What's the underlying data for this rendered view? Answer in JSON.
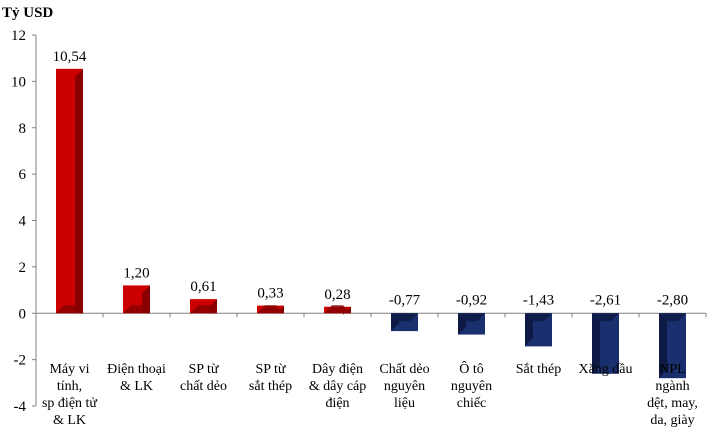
{
  "chart_data": {
    "type": "bar",
    "title": "",
    "ylabel": "Tỷ USD",
    "xlabel": "",
    "ylim": [
      -4,
      12
    ],
    "yticks": [
      -4,
      -2,
      0,
      2,
      4,
      6,
      8,
      10,
      12
    ],
    "ytick_labels": [
      "-4",
      "-2",
      "0",
      "2",
      "4",
      "6",
      "8",
      "10",
      "12"
    ],
    "grid": false,
    "categories": [
      [
        "Máy vi",
        "tính,",
        "sp điện tử",
        "& LK"
      ],
      [
        "Điện thoại",
        "& LK"
      ],
      [
        "SP từ",
        "chất dẻo"
      ],
      [
        "SP từ",
        "sắt thép"
      ],
      [
        "Dây điện",
        "& dây cáp",
        "điện"
      ],
      [
        "Chất dẻo",
        "nguyên",
        "liệu"
      ],
      [
        "Ô tô",
        "nguyên",
        "chiếc"
      ],
      [
        "Sắt thép"
      ],
      [
        "Xăng dầu"
      ],
      [
        "NPL",
        "ngành",
        "dệt, may,",
        "da, giày"
      ]
    ],
    "values": [
      10.54,
      1.2,
      0.61,
      0.33,
      0.28,
      -0.77,
      -0.92,
      -1.43,
      -2.61,
      -2.8
    ],
    "data_labels": [
      "10,54",
      "1,20",
      "0,61",
      "0,33",
      "0,28",
      "-0,77",
      "-0,92",
      "-1,43",
      "-2,61",
      "-2,80"
    ],
    "colors": {
      "positive_front": "#cc0000",
      "positive_side": "#8a0000",
      "negative_front": "#1a2f6e",
      "negative_side": "#0e1a45",
      "axis": "#808080"
    }
  }
}
